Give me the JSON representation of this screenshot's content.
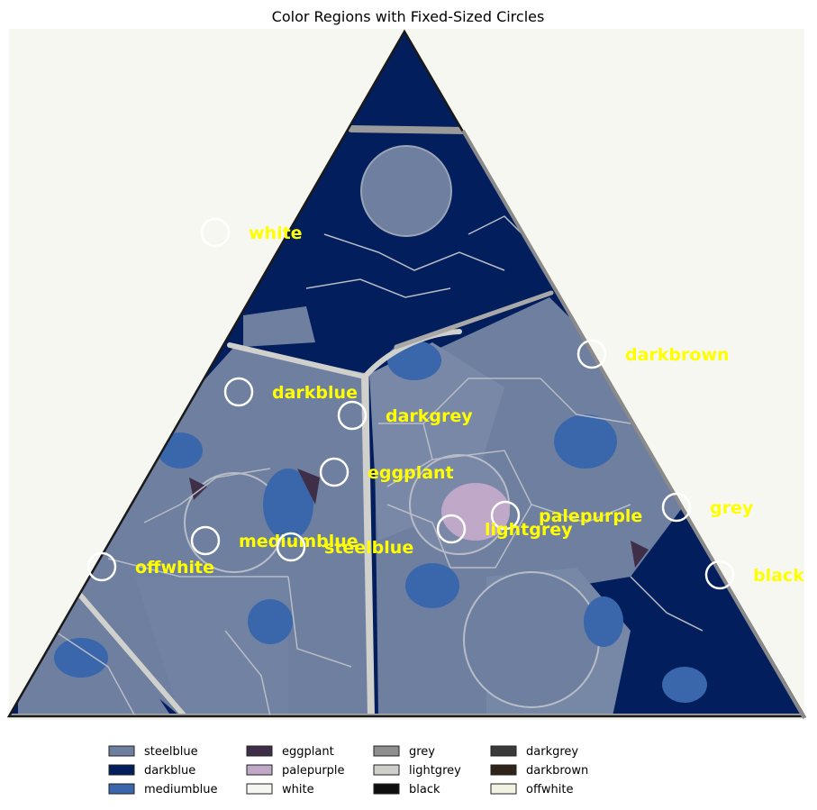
{
  "chart_data": {
    "type": "other",
    "title": "Color Regions with Fixed-Sized Circles",
    "legend_placement": "bottom-center",
    "legend": [
      {
        "name": "steelblue",
        "color": "#6f7fa0"
      },
      {
        "name": "darkblue",
        "color": "#021e5c"
      },
      {
        "name": "mediumblue",
        "color": "#3a67ab"
      },
      {
        "name": "eggplant",
        "color": "#3f2e47"
      },
      {
        "name": "palepurple",
        "color": "#c0a8c8"
      },
      {
        "name": "white",
        "color": "#f6f6f0"
      },
      {
        "name": "grey",
        "color": "#8e8e8e"
      },
      {
        "name": "lightgrey",
        "color": "#cfcfcc"
      },
      {
        "name": "black",
        "color": "#0e0e0e"
      },
      {
        "name": "darkgrey",
        "color": "#3a3a3a"
      },
      {
        "name": "darkbrown",
        "color": "#30241a"
      },
      {
        "name": "offwhite",
        "color": "#f2f2e2"
      }
    ],
    "circles": [
      {
        "label": "white"
      },
      {
        "label": "darkbrown"
      },
      {
        "label": "darkblue"
      },
      {
        "label": "darkgrey"
      },
      {
        "label": "eggplant"
      },
      {
        "label": "palepurple"
      },
      {
        "label": "grey"
      },
      {
        "label": "lightgrey"
      },
      {
        "label": "mediumblue"
      },
      {
        "label": "steelblue"
      },
      {
        "label": "offwhite"
      },
      {
        "label": "black"
      }
    ]
  }
}
